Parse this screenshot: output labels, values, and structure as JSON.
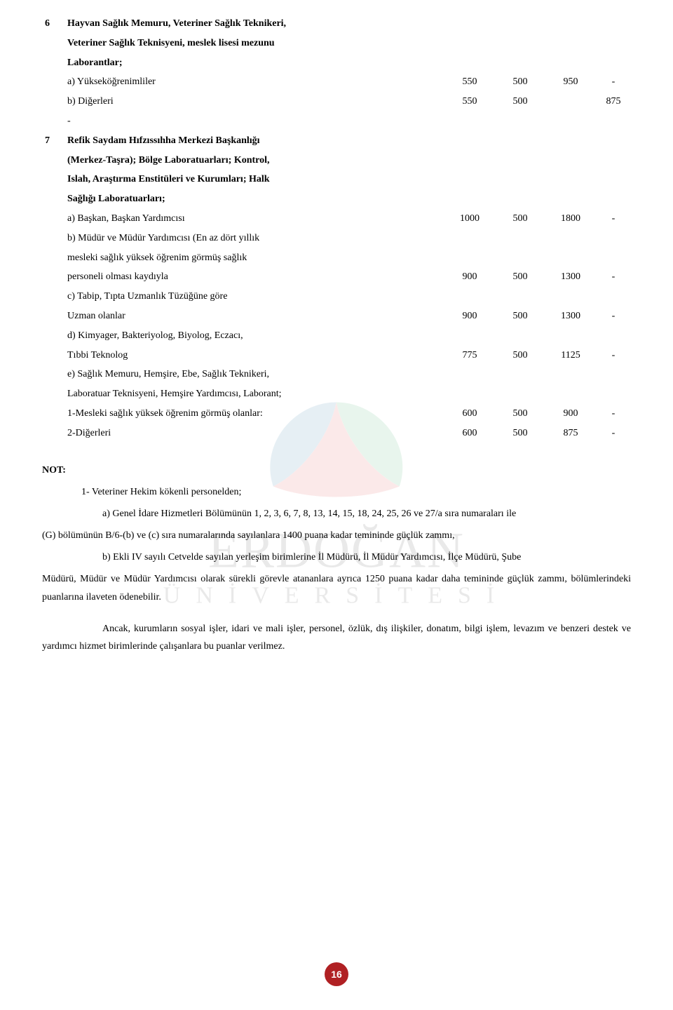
{
  "table": {
    "rows": [
      {
        "idx": "6",
        "texts": [
          "Hayvan Sağlık Memuru, Veteriner Sağlık Teknikeri,"
        ],
        "bold": true,
        "cols": [
          "",
          "",
          "",
          ""
        ]
      },
      {
        "idx": "",
        "texts": [
          "Veteriner Sağlık Teknisyeni, meslek lisesi mezunu"
        ],
        "bold": true,
        "cols": [
          "",
          "",
          "",
          ""
        ]
      },
      {
        "idx": "",
        "texts": [
          "Laborantlar;"
        ],
        "bold": true,
        "cols": [
          "",
          "",
          "",
          ""
        ]
      },
      {
        "idx": "",
        "texts": [
          "a) Yükseköğrenimliler"
        ],
        "sub": true,
        "cols": [
          "550",
          "500",
          "950",
          "-"
        ]
      },
      {
        "idx": "",
        "texts": [
          "b) Diğerleri"
        ],
        "sub": true,
        "cols": [
          "550",
          "500",
          "",
          "875"
        ]
      },
      {
        "idx": "",
        "texts": [
          "-"
        ],
        "sub": true,
        "cols": [
          "",
          "",
          "",
          ""
        ]
      },
      {
        "idx": "7",
        "texts": [
          "Refik Saydam Hıfzıssıhha Merkezi Başkanlığı"
        ],
        "bold": true,
        "cols": [
          "",
          "",
          "",
          ""
        ]
      },
      {
        "idx": "",
        "texts": [
          "(Merkez-Taşra); Bölge Laboratuarları; Kontrol,"
        ],
        "bold": true,
        "cols": [
          "",
          "",
          "",
          ""
        ]
      },
      {
        "idx": "",
        "texts": [
          "Islah, Araştırma Enstitüleri ve Kurumları; Halk"
        ],
        "bold": true,
        "cols": [
          "",
          "",
          "",
          ""
        ]
      },
      {
        "idx": "",
        "texts": [
          "Sağlığı Laboratuarları;"
        ],
        "bold": true,
        "cols": [
          "",
          "",
          "",
          ""
        ]
      },
      {
        "idx": "",
        "texts": [
          "a) Başkan, Başkan Yardımcısı"
        ],
        "sub": true,
        "cols": [
          "1000",
          "500",
          "1800",
          "-"
        ]
      },
      {
        "idx": "",
        "texts": [
          "b) Müdür ve Müdür Yardımcısı (En az dört yıllık"
        ],
        "sub": true,
        "cols": [
          "",
          "",
          "",
          ""
        ]
      },
      {
        "idx": "",
        "texts": [
          "mesleki sağlık yüksek öğrenim görmüş sağlık"
        ],
        "sub": true,
        "cols": [
          "",
          "",
          "",
          ""
        ]
      },
      {
        "idx": "",
        "texts": [
          "personeli olması kaydıyla"
        ],
        "sub": true,
        "cols": [
          "900",
          "500",
          "1300",
          "-"
        ]
      },
      {
        "idx": "",
        "texts": [
          "c) Tabip, Tıpta Uzmanlık Tüzüğüne göre"
        ],
        "sub": true,
        "cols": [
          "",
          "",
          "",
          ""
        ]
      },
      {
        "idx": "",
        "texts": [
          "Uzman olanlar"
        ],
        "sub": true,
        "cols": [
          "900",
          "500",
          "1300",
          "-"
        ]
      },
      {
        "idx": "",
        "texts": [
          "d) Kimyager, Bakteriyolog, Biyolog, Eczacı,"
        ],
        "sub": true,
        "cols": [
          "",
          "",
          "",
          ""
        ]
      },
      {
        "idx": "",
        "texts": [
          "Tıbbi Teknolog"
        ],
        "sub": true,
        "cols": [
          "775",
          "500",
          "1125",
          "-"
        ]
      },
      {
        "idx": "",
        "texts": [
          "e) Sağlık Memuru, Hemşire, Ebe, Sağlık Teknikeri,"
        ],
        "sub": true,
        "cols": [
          "",
          "",
          "",
          ""
        ]
      },
      {
        "idx": "",
        "texts": [
          "Laboratuar Teknisyeni, Hemşire Yardımcısı, Laborant;"
        ],
        "sub": true,
        "cols": [
          "",
          "",
          "",
          ""
        ]
      },
      {
        "idx": "",
        "texts": [
          "1-Mesleki sağlık yüksek öğrenim görmüş olanlar:"
        ],
        "sub2": true,
        "cols": [
          "600",
          "500",
          "900",
          "-"
        ]
      },
      {
        "idx": "",
        "texts": [
          "2-Diğerleri"
        ],
        "sub2": true,
        "cols": [
          "600",
          "500",
          "875",
          "-"
        ]
      }
    ]
  },
  "notes": {
    "header": "NOT:",
    "line1a": "1-      Veteriner Hekim kökenli personelden;",
    "line_a": "a)      Genel İdare Hizmetleri Bölümünün 1, 2, 3, 6, 7, 8, 13, 14, 15, 18, 24, 25, 26 ve 27/a sıra numaraları ile",
    "line_a2": "(G) bölümünün B/6-(b) ve (c) sıra numaralarında sayılanlara 1400 puana kadar temininde güçlük zammı,",
    "line_b": "b)      Ekli IV sayılı Cetvelde sayılan yerleşim birimlerine İl Müdürü, İl Müdür Yardımcısı, İlçe Müdürü, Şube",
    "line_b2": "Müdürü, Müdür ve Müdür Yardımcısı olarak sürekli görevle atananlara ayrıca 1250 puana kadar daha temininde güçlük zammı, bölümlerindeki puanlarına ilaveten ödenebilir.",
    "para2": "Ancak, kurumların sosyal işler, idari ve mali işler, personel, özlük, dış ilişkiler, donatım, bilgi işlem, levazım ve benzeri destek ve yardımcı hizmet birimlerinde çalışanlara bu puanlar verilmez."
  },
  "page_number": "16",
  "watermark": {
    "line1": "ERDOĞAN",
    "line2": "ÜNİVERSİTESİ"
  },
  "colors": {
    "page_badge": "#b02023",
    "text": "#000000",
    "bg": "#ffffff"
  }
}
